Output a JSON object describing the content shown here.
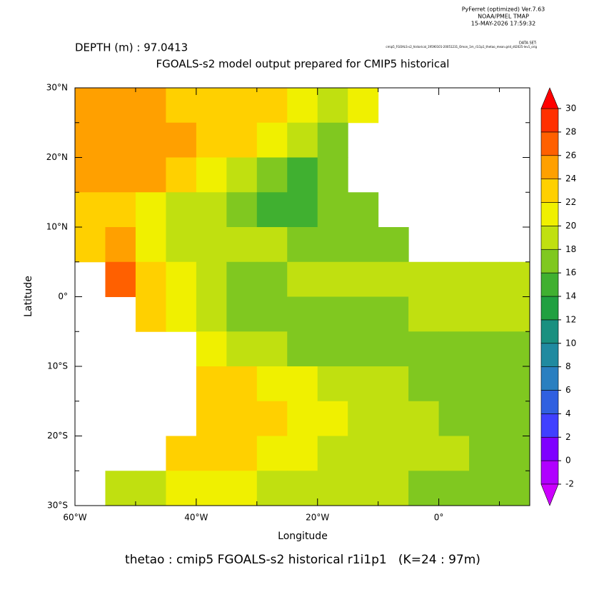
{
  "chart_data": {
    "type": "heatmap",
    "header": [
      "PyFerret (optimized) Ver.7.63",
      "NOAA/PMEL TMAP",
      "15-MAY-2026 17:59:32"
    ],
    "dataset_label": "DATA SET:",
    "dataset": "cmip5_FGOALS-s2_historical_19590101-20051231_Omon_1m_r1i1p1_thetao_mean.grid_dt2025-lev1_orig",
    "depth_label": "DEPTH (m) : 97.0413",
    "title": "FGOALS-s2 model output prepared for CMIP5 historical",
    "xlabel": "Longitude",
    "ylabel": "Latitude",
    "footer": "thetao : cmip5 FGOALS-s2 historical r1i1p1   (K=24 : 97m)",
    "xlim": [
      -60,
      15
    ],
    "ylim": [
      -30,
      30
    ],
    "xticks": [
      {
        "value": -60,
        "label": "60°W"
      },
      {
        "value": -40,
        "label": "40°W"
      },
      {
        "value": -20,
        "label": "20°W"
      },
      {
        "value": 0,
        "label": "0°"
      }
    ],
    "xminor_ticks": [
      -50,
      -30,
      -10,
      10
    ],
    "yticks": [
      {
        "value": 30,
        "label": "30°N"
      },
      {
        "value": 20,
        "label": "20°N"
      },
      {
        "value": 10,
        "label": "10°N"
      },
      {
        "value": 0,
        "label": "0°"
      },
      {
        "value": -10,
        "label": "10°S"
      },
      {
        "value": -20,
        "label": "20°S"
      },
      {
        "value": -30,
        "label": "30°S"
      }
    ],
    "yminor_ticks": [
      25,
      15,
      5,
      -5,
      -15,
      -25
    ],
    "x": [
      -57.5,
      -52.5,
      -47.5,
      -42.5,
      -37.5,
      -32.5,
      -27.5,
      -22.5,
      -17.5,
      -12.5,
      -7.5,
      -2.5,
      2.5,
      7.5,
      12.5
    ],
    "y": [
      27.5,
      22.5,
      17.5,
      12.5,
      7.5,
      2.5,
      -2.5,
      -7.5,
      -12.5,
      -17.5,
      -22.5,
      -27.5
    ],
    "values": [
      [
        24.5,
        24.5,
        24,
        23.5,
        23,
        22.5,
        22,
        21,
        19,
        20,
        null,
        null,
        null,
        null,
        null
      ],
      [
        25,
        25,
        24.5,
        24,
        23,
        22.5,
        21,
        18,
        16,
        null,
        null,
        null,
        null,
        null,
        null
      ],
      [
        25.5,
        25,
        24.5,
        23,
        21,
        19,
        17,
        15.5,
        16,
        null,
        null,
        null,
        null,
        null,
        null
      ],
      [
        23,
        22,
        21,
        19,
        18,
        16.5,
        15,
        15,
        16,
        17,
        null,
        null,
        null,
        null,
        null
      ],
      [
        23,
        25,
        21,
        19,
        19,
        18,
        18,
        17.5,
        17,
        17,
        17.5,
        null,
        null,
        null,
        null
      ],
      [
        null,
        26,
        23,
        20,
        18,
        17,
        17.5,
        18,
        18,
        18,
        18,
        18.5,
        18.5,
        19,
        19
      ],
      [
        null,
        null,
        22,
        20,
        18,
        16.5,
        16,
        16,
        16.5,
        17,
        17.5,
        18,
        18,
        18,
        18.5
      ],
      [
        null,
        null,
        null,
        null,
        21,
        19,
        18,
        17,
        16.5,
        16.5,
        17,
        17,
        17,
        17.5,
        17
      ],
      [
        null,
        null,
        null,
        null,
        22.5,
        22,
        21,
        20,
        19,
        18.5,
        18,
        17,
        16.5,
        16,
        17
      ],
      [
        null,
        null,
        null,
        null,
        23,
        22.5,
        22,
        21,
        20,
        19,
        18.5,
        18,
        17,
        16,
        17.5
      ],
      [
        null,
        null,
        null,
        22,
        22.5,
        22,
        21,
        20,
        19.5,
        19,
        18.5,
        18,
        18,
        17,
        17
      ],
      [
        null,
        18,
        19,
        20,
        20.5,
        20,
        19.5,
        19,
        19,
        18.5,
        18,
        17.5,
        17,
        16.5,
        16
      ]
    ],
    "clim": [
      -2,
      30
    ],
    "cticks": [
      -2,
      0,
      2,
      4,
      6,
      8,
      10,
      12,
      14,
      16,
      18,
      20,
      22,
      24,
      26,
      28,
      30
    ],
    "colors": [
      "#b000ff",
      "#7f00ff",
      "#4040ff",
      "#3060e0",
      "#2a7fc0",
      "#208aa0",
      "#1a9080",
      "#20a040",
      "#40b030",
      "#80c820",
      "#c0e010",
      "#f0f000",
      "#ffd000",
      "#ffa000",
      "#ff6000",
      "#ff3000"
    ],
    "under_color": "#cc00ff",
    "over_color": "#ff0000"
  }
}
